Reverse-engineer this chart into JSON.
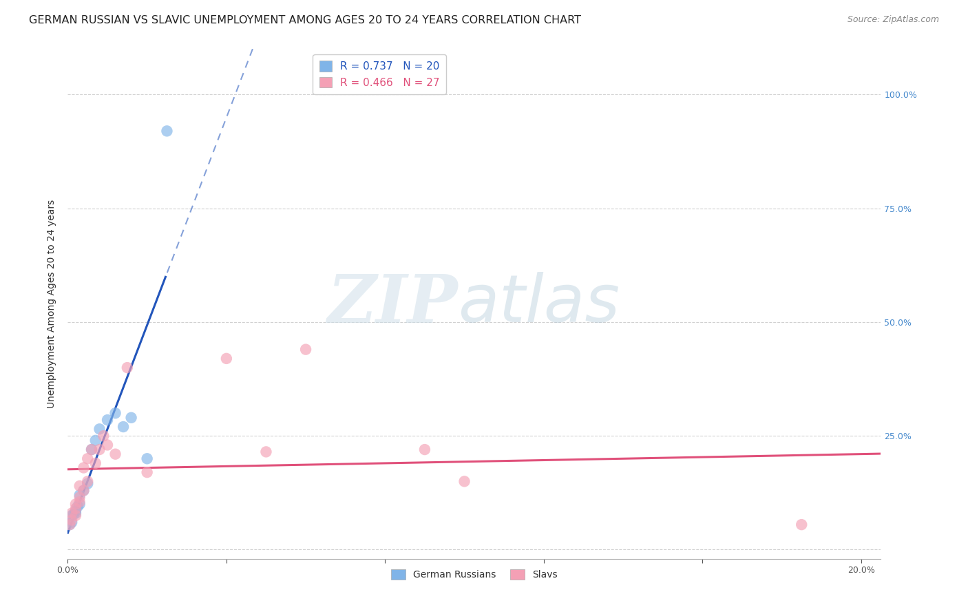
{
  "title": "GERMAN RUSSIAN VS SLAVIC UNEMPLOYMENT AMONG AGES 20 TO 24 YEARS CORRELATION CHART",
  "source": "Source: ZipAtlas.com",
  "ylabel": "Unemployment Among Ages 20 to 24 years",
  "xlim": [
    0.0,
    0.205
  ],
  "ylim": [
    -0.02,
    1.1
  ],
  "x_tick_positions": [
    0.0,
    0.04,
    0.08,
    0.12,
    0.16,
    0.2
  ],
  "x_tick_labels": [
    "0.0%",
    "",
    "",
    "",
    "",
    "20.0%"
  ],
  "y_tick_positions": [
    0.0,
    0.25,
    0.5,
    0.75,
    1.0
  ],
  "y_tick_labels_right": [
    "",
    "25.0%",
    "50.0%",
    "75.0%",
    "100.0%"
  ],
  "german_russian_x": [
    0.0005,
    0.001,
    0.001,
    0.0015,
    0.002,
    0.002,
    0.0025,
    0.003,
    0.003,
    0.004,
    0.005,
    0.006,
    0.007,
    0.008,
    0.01,
    0.012,
    0.014,
    0.016,
    0.02,
    0.025
  ],
  "german_russian_y": [
    0.055,
    0.06,
    0.075,
    0.078,
    0.08,
    0.085,
    0.095,
    0.1,
    0.12,
    0.13,
    0.145,
    0.22,
    0.24,
    0.265,
    0.285,
    0.3,
    0.27,
    0.29,
    0.2,
    0.92
  ],
  "slavic_x": [
    0.0005,
    0.001,
    0.001,
    0.002,
    0.002,
    0.002,
    0.003,
    0.003,
    0.003,
    0.004,
    0.004,
    0.005,
    0.005,
    0.006,
    0.007,
    0.008,
    0.009,
    0.01,
    0.012,
    0.015,
    0.02,
    0.04,
    0.05,
    0.06,
    0.09,
    0.1,
    0.185
  ],
  "slavic_y": [
    0.055,
    0.065,
    0.08,
    0.075,
    0.1,
    0.09,
    0.115,
    0.14,
    0.105,
    0.13,
    0.18,
    0.15,
    0.2,
    0.22,
    0.19,
    0.22,
    0.25,
    0.23,
    0.21,
    0.4,
    0.17,
    0.42,
    0.215,
    0.44,
    0.22,
    0.15,
    0.055
  ],
  "german_russian_R": 0.737,
  "german_russian_N": 20,
  "slavic_R": 0.466,
  "slavic_N": 27,
  "german_russian_color": "#80b4e8",
  "slavic_color": "#f4a0b5",
  "german_russian_line_color": "#2255bb",
  "slavic_line_color": "#e0507a",
  "background_color": "#ffffff",
  "grid_color": "#cccccc",
  "title_fontsize": 11.5,
  "axis_label_fontsize": 10,
  "tick_fontsize": 9,
  "legend_fontsize": 11
}
